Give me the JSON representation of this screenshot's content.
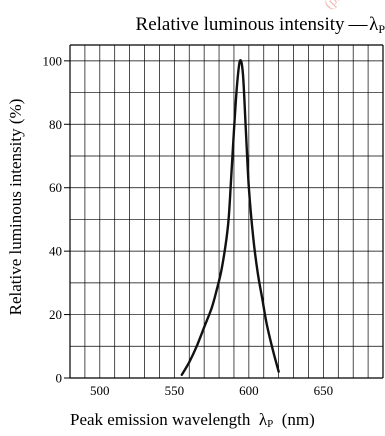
{
  "chart_data": {
    "type": "line",
    "title": "Relative luminous intensity",
    "title_symbol": "λ",
    "title_symbol_sub": "P",
    "xlabel": "Peak emission wavelength",
    "xlabel_symbol": "λ",
    "xlabel_symbol_sub": "P",
    "xlabel_unit": "(nm)",
    "ylabel": "Relative luminous intensity  (%)",
    "xlim": [
      480,
      690
    ],
    "ylim": [
      0,
      105
    ],
    "x_ticks": [
      500,
      550,
      600,
      650
    ],
    "y_ticks": [
      0,
      20,
      40,
      60,
      80,
      100
    ],
    "grid": true,
    "series": [
      {
        "color": "#111111",
        "x": [
          555,
          560,
          565,
          570,
          575,
          578,
          582,
          586,
          588,
          590,
          592,
          594,
          596,
          598,
          600,
          603,
          606,
          609,
          612,
          616,
          620
        ],
        "y": [
          1,
          5,
          10,
          16,
          22,
          27,
          35,
          48,
          62,
          78,
          92,
          100,
          96,
          78,
          60,
          44,
          33,
          25,
          17,
          9,
          2
        ]
      }
    ]
  },
  "watermark": "(plane"
}
